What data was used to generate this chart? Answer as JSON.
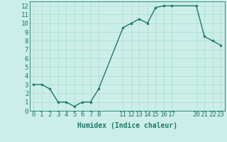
{
  "x": [
    0,
    1,
    2,
    3,
    4,
    5,
    6,
    7,
    8,
    11,
    12,
    13,
    14,
    15,
    16,
    17,
    20,
    21,
    22,
    23
  ],
  "y": [
    3,
    3,
    2.5,
    1,
    1,
    0.5,
    1,
    1,
    2.5,
    9.5,
    10,
    10.5,
    10,
    11.8,
    12,
    12,
    12,
    8.5,
    8,
    7.5
  ],
  "line_color": "#1a7a6a",
  "marker_color": "#1a7a6a",
  "bg_color": "#cceee8",
  "grid_color": "#aaddcc",
  "xlabel": "Humidex (Indice chaleur)",
  "xlim": [
    -0.5,
    23.5
  ],
  "ylim": [
    0,
    12.5
  ],
  "xticks": [
    0,
    1,
    2,
    3,
    4,
    5,
    6,
    7,
    8,
    11,
    12,
    13,
    14,
    15,
    16,
    17,
    20,
    21,
    22,
    23
  ],
  "yticks": [
    0,
    1,
    2,
    3,
    4,
    5,
    6,
    7,
    8,
    9,
    10,
    11,
    12
  ],
  "label_fontsize": 7,
  "tick_fontsize": 6.5
}
